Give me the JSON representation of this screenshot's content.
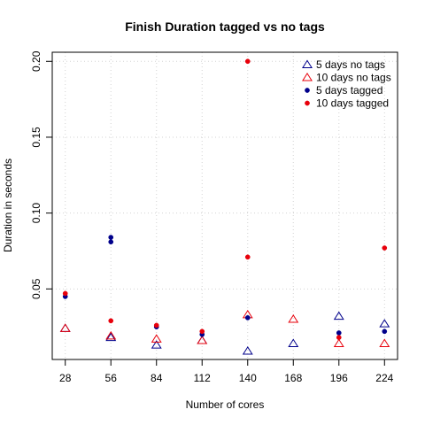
{
  "chart_data": {
    "type": "scatter",
    "title": "Finish Duration tagged vs no tags",
    "xlabel": "Number of cores",
    "ylabel": "Duration in seconds",
    "x_ticks": [
      28,
      56,
      84,
      112,
      140,
      168,
      196,
      224
    ],
    "y_ticks": [
      0.05,
      0.1,
      0.15,
      0.2
    ],
    "y_tick_labels": [
      "0.05",
      "0.10",
      "0.15",
      "0.20"
    ],
    "xlim": [
      20,
      232
    ],
    "ylim": [
      0.0035,
      0.206
    ],
    "grid": true,
    "legend_position": "top-right",
    "series": [
      {
        "name": "5 days no tags",
        "marker": "triangle-open",
        "color": "#00008b",
        "points": [
          [
            28,
            0.024
          ],
          [
            56,
            0.018
          ],
          [
            84,
            0.013
          ],
          [
            112,
            0.016
          ],
          [
            140,
            0.009
          ],
          [
            168,
            0.014
          ],
          [
            196,
            0.032
          ],
          [
            224,
            0.027
          ]
        ]
      },
      {
        "name": "10 days no tags",
        "marker": "triangle-open",
        "color": "#e8000b",
        "points": [
          [
            28,
            0.024
          ],
          [
            56,
            0.019
          ],
          [
            84,
            0.017
          ],
          [
            112,
            0.016
          ],
          [
            140,
            0.033
          ],
          [
            168,
            0.03
          ],
          [
            196,
            0.014
          ],
          [
            224,
            0.014
          ]
        ]
      },
      {
        "name": "5 days tagged",
        "marker": "dot",
        "color": "#00008b",
        "points": [
          [
            28,
            0.045
          ],
          [
            56,
            0.081
          ],
          [
            56,
            0.084
          ],
          [
            84,
            0.025
          ],
          [
            112,
            0.02
          ],
          [
            140,
            0.031
          ],
          [
            196,
            0.021
          ],
          [
            224,
            0.022
          ]
        ]
      },
      {
        "name": "10 days tagged",
        "marker": "dot",
        "color": "#e8000b",
        "points": [
          [
            28,
            0.047
          ],
          [
            56,
            0.029
          ],
          [
            84,
            0.026
          ],
          [
            112,
            0.022
          ],
          [
            140,
            0.071
          ],
          [
            140,
            0.2
          ],
          [
            196,
            0.018
          ],
          [
            224,
            0.077
          ]
        ]
      }
    ]
  }
}
